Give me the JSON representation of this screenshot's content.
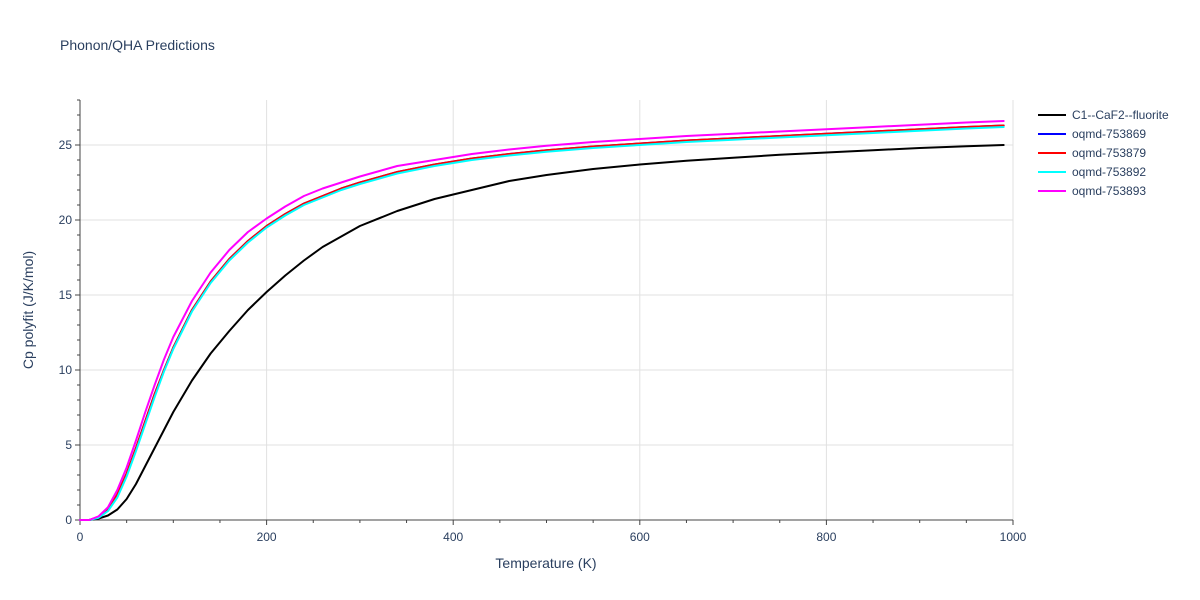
{
  "chart_data": {
    "type": "line",
    "title": "Phonon/QHA Predictions",
    "xlabel": "Temperature (K)",
    "ylabel": "Cp polyfit (J/K/mol)",
    "xlim": [
      0,
      1000
    ],
    "ylim": [
      0,
      28
    ],
    "xticks": [
      0,
      200,
      400,
      600,
      800,
      1000
    ],
    "yticks": [
      0,
      5,
      10,
      15,
      20,
      25
    ],
    "grid": true,
    "legend_position": "top-right",
    "x": [
      0,
      10,
      20,
      30,
      40,
      50,
      60,
      70,
      80,
      90,
      100,
      120,
      140,
      160,
      180,
      200,
      220,
      240,
      260,
      280,
      300,
      340,
      380,
      420,
      460,
      500,
      550,
      600,
      650,
      700,
      750,
      800,
      850,
      900,
      950,
      990
    ],
    "series": [
      {
        "name": "C1--CaF2--fluorite",
        "color": "#000000",
        "values": [
          0,
          0,
          0.1,
          0.3,
          0.7,
          1.4,
          2.4,
          3.6,
          4.8,
          6.0,
          7.2,
          9.3,
          11.1,
          12.6,
          14.0,
          15.2,
          16.3,
          17.3,
          18.2,
          18.9,
          19.6,
          20.6,
          21.4,
          22.0,
          22.6,
          23.0,
          23.4,
          23.7,
          23.95,
          24.15,
          24.35,
          24.5,
          24.65,
          24.8,
          24.92,
          25.0
        ]
      },
      {
        "name": "oqmd-753869",
        "color": "#0000ff",
        "values": [
          0,
          0,
          0.2,
          0.7,
          1.7,
          3.1,
          4.8,
          6.6,
          8.4,
          10.0,
          11.5,
          14.0,
          15.9,
          17.4,
          18.6,
          19.6,
          20.4,
          21.1,
          21.6,
          22.1,
          22.5,
          23.2,
          23.7,
          24.1,
          24.4,
          24.65,
          24.9,
          25.1,
          25.3,
          25.45,
          25.6,
          25.75,
          25.9,
          26.05,
          26.2,
          26.3
        ]
      },
      {
        "name": "oqmd-753879",
        "color": "#ff0000",
        "values": [
          0,
          0,
          0.2,
          0.7,
          1.7,
          3.1,
          4.8,
          6.6,
          8.4,
          10.0,
          11.5,
          14.0,
          15.9,
          17.4,
          18.6,
          19.6,
          20.4,
          21.1,
          21.6,
          22.1,
          22.5,
          23.2,
          23.7,
          24.1,
          24.4,
          24.65,
          24.9,
          25.1,
          25.3,
          25.45,
          25.6,
          25.75,
          25.9,
          26.05,
          26.2,
          26.3
        ]
      },
      {
        "name": "oqmd-753892",
        "color": "#00ffff",
        "values": [
          0,
          0,
          0.15,
          0.6,
          1.5,
          2.9,
          4.6,
          6.4,
          8.2,
          9.9,
          11.4,
          13.9,
          15.8,
          17.3,
          18.5,
          19.5,
          20.3,
          21.0,
          21.5,
          22.0,
          22.4,
          23.1,
          23.6,
          24.0,
          24.3,
          24.55,
          24.8,
          25.0,
          25.2,
          25.35,
          25.5,
          25.65,
          25.8,
          25.95,
          26.1,
          26.2
        ]
      },
      {
        "name": "oqmd-753893",
        "color": "#ff00ff",
        "values": [
          0,
          0,
          0.25,
          0.85,
          2.0,
          3.5,
          5.3,
          7.2,
          9.0,
          10.7,
          12.2,
          14.6,
          16.5,
          18.0,
          19.2,
          20.1,
          20.9,
          21.6,
          22.1,
          22.5,
          22.9,
          23.6,
          24.0,
          24.4,
          24.7,
          24.95,
          25.2,
          25.4,
          25.6,
          25.75,
          25.9,
          26.05,
          26.2,
          26.35,
          26.5,
          26.6
        ]
      }
    ]
  }
}
